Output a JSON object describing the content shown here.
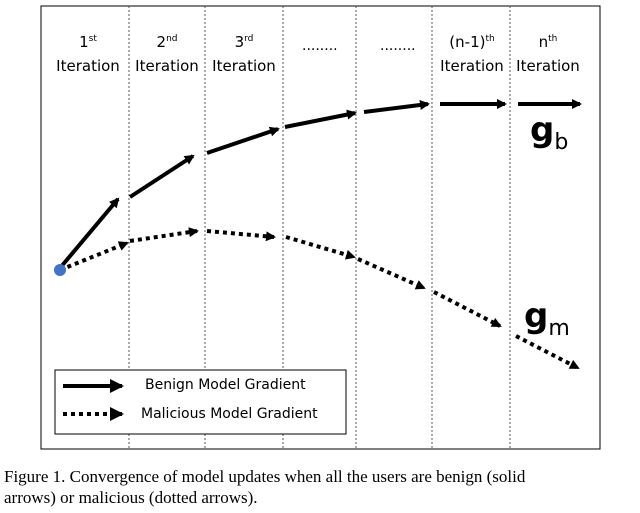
{
  "iterations": [
    {
      "num": "1",
      "sup": "st",
      "word": "Iteration"
    },
    {
      "num": "2",
      "sup": "nd",
      "word": "Iteration"
    },
    {
      "num": "3",
      "sup": "rd",
      "word": "Iteration"
    },
    {
      "num": "(n-1)",
      "sup": "th",
      "word": "Iteration"
    },
    {
      "num": "n",
      "sup": "th",
      "word": "Iteration"
    }
  ],
  "ellipsis": [
    "........",
    "........"
  ],
  "labels": {
    "benign_g": "g",
    "benign_sub": "b",
    "malicious_g": "g",
    "malicious_sub": "m"
  },
  "legend": {
    "benign": "Benign Model Gradient",
    "malicious": "Malicious Model Gradient"
  },
  "caption": {
    "line1": "Figure 1.  Convergence of model updates when all the users are benign (solid",
    "line2": "arrows) or malicious (dotted arrows)."
  },
  "colors": {
    "start_dot": "#4472c4",
    "stroke": "#000000"
  }
}
